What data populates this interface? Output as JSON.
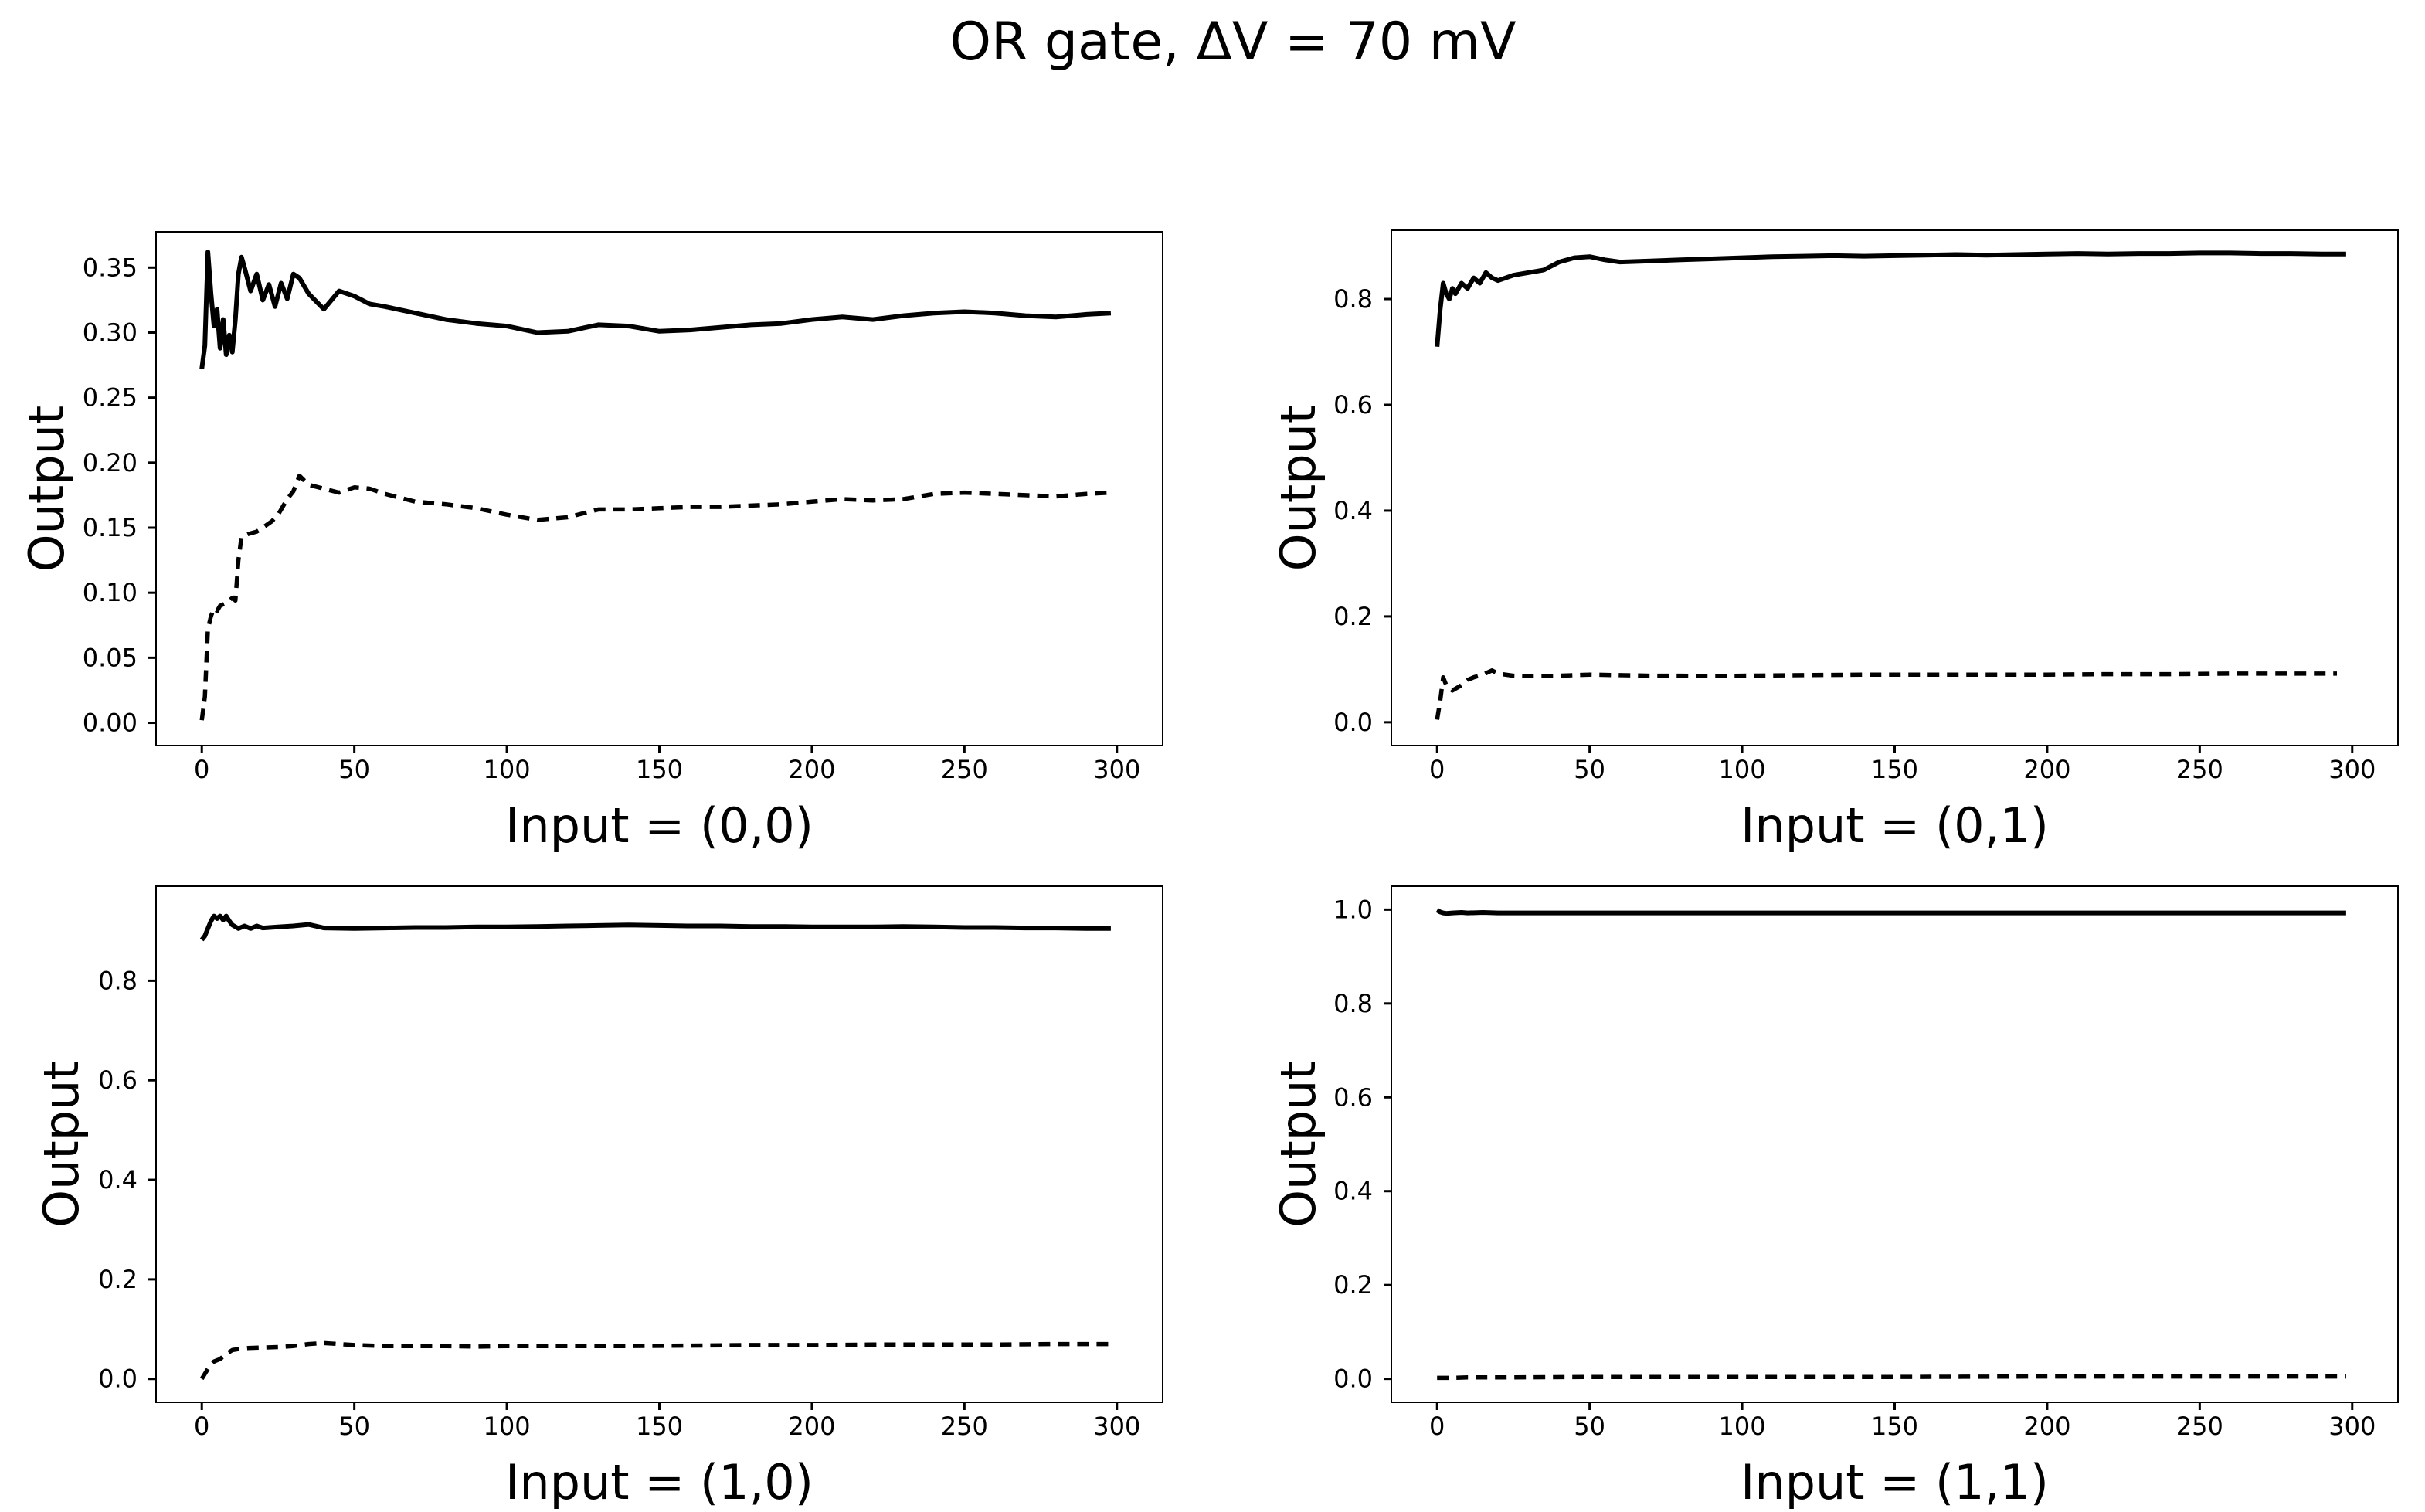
{
  "figure_title": "OR gate, ΔV =  70 mV",
  "colors": {
    "line": "#000000",
    "background": "#ffffff"
  },
  "chart_data": [
    {
      "type": "line",
      "title": "",
      "xlabel": "Input = (0,0)",
      "ylabel": "Output",
      "xlim": [
        -15,
        315
      ],
      "ylim": [
        -0.0175,
        0.3775
      ],
      "xticks": [
        0,
        50,
        100,
        150,
        200,
        250,
        300
      ],
      "xtick_labels": [
        "0",
        "50",
        "100",
        "150",
        "200",
        "250",
        "300"
      ],
      "yticks": [
        0.0,
        0.05,
        0.1,
        0.15,
        0.2,
        0.25,
        0.3,
        0.35
      ],
      "ytick_labels": [
        "0.00",
        "0.05",
        "0.10",
        "0.15",
        "0.20",
        "0.25",
        "0.30",
        "0.35"
      ],
      "grid": false,
      "series": [
        {
          "name": "solid",
          "style": "solid",
          "x": [
            0,
            1,
            2,
            3,
            4,
            5,
            6,
            7,
            8,
            9,
            10,
            11,
            12,
            13,
            14,
            16,
            18,
            20,
            22,
            24,
            26,
            28,
            30,
            32,
            35,
            40,
            45,
            50,
            55,
            60,
            70,
            80,
            90,
            100,
            110,
            120,
            130,
            140,
            150,
            160,
            170,
            180,
            190,
            200,
            210,
            220,
            230,
            240,
            250,
            260,
            270,
            280,
            290,
            298
          ],
          "values": [
            0.272,
            0.29,
            0.362,
            0.33,
            0.305,
            0.318,
            0.288,
            0.31,
            0.283,
            0.298,
            0.285,
            0.31,
            0.345,
            0.358,
            0.35,
            0.332,
            0.345,
            0.325,
            0.337,
            0.32,
            0.338,
            0.326,
            0.345,
            0.342,
            0.33,
            0.318,
            0.332,
            0.328,
            0.322,
            0.32,
            0.315,
            0.31,
            0.307,
            0.305,
            0.3,
            0.301,
            0.306,
            0.305,
            0.301,
            0.302,
            0.304,
            0.306,
            0.307,
            0.31,
            0.312,
            0.31,
            0.313,
            0.315,
            0.316,
            0.315,
            0.313,
            0.312,
            0.314,
            0.315
          ]
        },
        {
          "name": "dashed",
          "style": "dashed",
          "x": [
            0,
            1,
            2,
            3,
            4,
            5,
            6,
            8,
            10,
            11,
            12,
            13,
            15,
            18,
            20,
            23,
            25,
            28,
            30,
            32,
            35,
            40,
            45,
            50,
            55,
            60,
            70,
            80,
            90,
            100,
            110,
            120,
            130,
            140,
            150,
            160,
            170,
            180,
            190,
            200,
            210,
            220,
            230,
            240,
            250,
            260,
            270,
            280,
            290,
            298
          ],
          "values": [
            0.002,
            0.02,
            0.072,
            0.082,
            0.088,
            0.086,
            0.09,
            0.092,
            0.096,
            0.094,
            0.125,
            0.143,
            0.145,
            0.147,
            0.15,
            0.155,
            0.16,
            0.172,
            0.178,
            0.19,
            0.183,
            0.18,
            0.177,
            0.181,
            0.18,
            0.176,
            0.17,
            0.168,
            0.165,
            0.16,
            0.156,
            0.158,
            0.164,
            0.164,
            0.165,
            0.166,
            0.166,
            0.167,
            0.168,
            0.17,
            0.172,
            0.171,
            0.172,
            0.176,
            0.177,
            0.176,
            0.175,
            0.174,
            0.176,
            0.177
          ]
        }
      ]
    },
    {
      "type": "line",
      "title": "",
      "xlabel": "Input = (0,1)",
      "ylabel": "Output",
      "xlim": [
        -15,
        315
      ],
      "ylim": [
        -0.044,
        0.93
      ],
      "xticks": [
        0,
        50,
        100,
        150,
        200,
        250,
        300
      ],
      "xtick_labels": [
        "0",
        "50",
        "100",
        "150",
        "200",
        "250",
        "300"
      ],
      "yticks": [
        0.0,
        0.2,
        0.4,
        0.6,
        0.8
      ],
      "ytick_labels": [
        "0.0",
        "0.2",
        "0.4",
        "0.6",
        "0.8"
      ],
      "grid": false,
      "series": [
        {
          "name": "solid",
          "style": "solid",
          "x": [
            0,
            1,
            2,
            3,
            4,
            5,
            6,
            8,
            10,
            12,
            14,
            16,
            18,
            20,
            25,
            30,
            35,
            40,
            45,
            50,
            55,
            60,
            70,
            80,
            90,
            100,
            110,
            120,
            130,
            140,
            150,
            160,
            170,
            180,
            190,
            200,
            210,
            220,
            230,
            240,
            250,
            260,
            270,
            280,
            290,
            298
          ],
          "values": [
            0.71,
            0.78,
            0.83,
            0.81,
            0.8,
            0.82,
            0.81,
            0.83,
            0.82,
            0.84,
            0.83,
            0.85,
            0.84,
            0.835,
            0.845,
            0.85,
            0.855,
            0.87,
            0.878,
            0.88,
            0.874,
            0.87,
            0.872,
            0.874,
            0.876,
            0.878,
            0.88,
            0.881,
            0.882,
            0.881,
            0.882,
            0.883,
            0.884,
            0.883,
            0.884,
            0.885,
            0.886,
            0.885,
            0.886,
            0.886,
            0.887,
            0.887,
            0.886,
            0.886,
            0.885,
            0.885
          ]
        },
        {
          "name": "dashed",
          "style": "dashed",
          "x": [
            0,
            1,
            2,
            3,
            5,
            8,
            10,
            12,
            15,
            18,
            20,
            25,
            30,
            40,
            50,
            60,
            70,
            80,
            90,
            100,
            120,
            140,
            160,
            180,
            200,
            220,
            240,
            260,
            280,
            295
          ],
          "values": [
            0.005,
            0.04,
            0.085,
            0.07,
            0.06,
            0.07,
            0.08,
            0.085,
            0.09,
            0.098,
            0.092,
            0.088,
            0.087,
            0.088,
            0.09,
            0.089,
            0.088,
            0.088,
            0.087,
            0.088,
            0.089,
            0.09,
            0.09,
            0.09,
            0.09,
            0.091,
            0.091,
            0.092,
            0.092,
            0.092
          ]
        }
      ]
    },
    {
      "type": "line",
      "title": "",
      "xlabel": "Input = (1,0)",
      "ylabel": "Output",
      "xlim": [
        -15,
        315
      ],
      "ylim": [
        -0.047,
        0.99
      ],
      "xticks": [
        0,
        50,
        100,
        150,
        200,
        250,
        300
      ],
      "xtick_labels": [
        "0",
        "50",
        "100",
        "150",
        "200",
        "250",
        "300"
      ],
      "yticks": [
        0.0,
        0.2,
        0.4,
        0.6,
        0.8
      ],
      "ytick_labels": [
        "0.0",
        "0.2",
        "0.4",
        "0.6",
        "0.8"
      ],
      "grid": false,
      "series": [
        {
          "name": "solid",
          "style": "solid",
          "x": [
            0,
            1,
            2,
            3,
            4,
            5,
            6,
            7,
            8,
            9,
            10,
            12,
            14,
            16,
            18,
            20,
            25,
            30,
            35,
            40,
            50,
            60,
            70,
            80,
            90,
            100,
            110,
            120,
            130,
            140,
            150,
            160,
            170,
            180,
            190,
            200,
            210,
            220,
            230,
            240,
            250,
            260,
            270,
            280,
            290,
            298
          ],
          "values": [
            0.882,
            0.89,
            0.905,
            0.92,
            0.93,
            0.925,
            0.93,
            0.922,
            0.93,
            0.92,
            0.912,
            0.905,
            0.91,
            0.905,
            0.91,
            0.906,
            0.908,
            0.91,
            0.913,
            0.906,
            0.905,
            0.906,
            0.907,
            0.907,
            0.908,
            0.908,
            0.909,
            0.91,
            0.911,
            0.912,
            0.911,
            0.91,
            0.91,
            0.909,
            0.909,
            0.908,
            0.908,
            0.908,
            0.909,
            0.908,
            0.907,
            0.907,
            0.906,
            0.906,
            0.905,
            0.905
          ]
        },
        {
          "name": "dashed",
          "style": "dashed",
          "x": [
            0,
            2,
            4,
            6,
            8,
            10,
            12,
            15,
            20,
            25,
            30,
            35,
            40,
            45,
            50,
            60,
            70,
            80,
            90,
            100,
            120,
            140,
            160,
            180,
            200,
            220,
            240,
            260,
            280,
            298
          ],
          "values": [
            0.0,
            0.02,
            0.035,
            0.04,
            0.05,
            0.058,
            0.06,
            0.062,
            0.063,
            0.064,
            0.066,
            0.07,
            0.072,
            0.07,
            0.068,
            0.066,
            0.066,
            0.066,
            0.065,
            0.066,
            0.066,
            0.066,
            0.067,
            0.068,
            0.068,
            0.069,
            0.069,
            0.069,
            0.07,
            0.07
          ]
        }
      ]
    },
    {
      "type": "line",
      "title": "",
      "xlabel": "Input = (1,1)",
      "ylabel": "Output",
      "xlim": [
        -15,
        315
      ],
      "ylim": [
        -0.05,
        1.05
      ],
      "xticks": [
        0,
        50,
        100,
        150,
        200,
        250,
        300
      ],
      "xtick_labels": [
        "0",
        "50",
        "100",
        "150",
        "200",
        "250",
        "300"
      ],
      "yticks": [
        0.0,
        0.2,
        0.4,
        0.6,
        0.8,
        1.0
      ],
      "ytick_labels": [
        "0.0",
        "0.2",
        "0.4",
        "0.6",
        "0.8",
        "1.0"
      ],
      "grid": false,
      "series": [
        {
          "name": "solid",
          "style": "solid",
          "x": [
            0,
            1,
            2,
            3,
            5,
            8,
            10,
            15,
            20,
            30,
            50,
            100,
            150,
            200,
            250,
            298
          ],
          "values": [
            0.999,
            0.995,
            0.993,
            0.992,
            0.993,
            0.994,
            0.993,
            0.994,
            0.993,
            0.993,
            0.993,
            0.993,
            0.993,
            0.993,
            0.993,
            0.993
          ]
        },
        {
          "name": "dashed",
          "style": "dashed",
          "x": [
            0,
            5,
            10,
            20,
            50,
            100,
            150,
            200,
            250,
            298
          ],
          "values": [
            0.002,
            0.002,
            0.003,
            0.003,
            0.004,
            0.004,
            0.004,
            0.005,
            0.005,
            0.005
          ]
        }
      ]
    }
  ]
}
